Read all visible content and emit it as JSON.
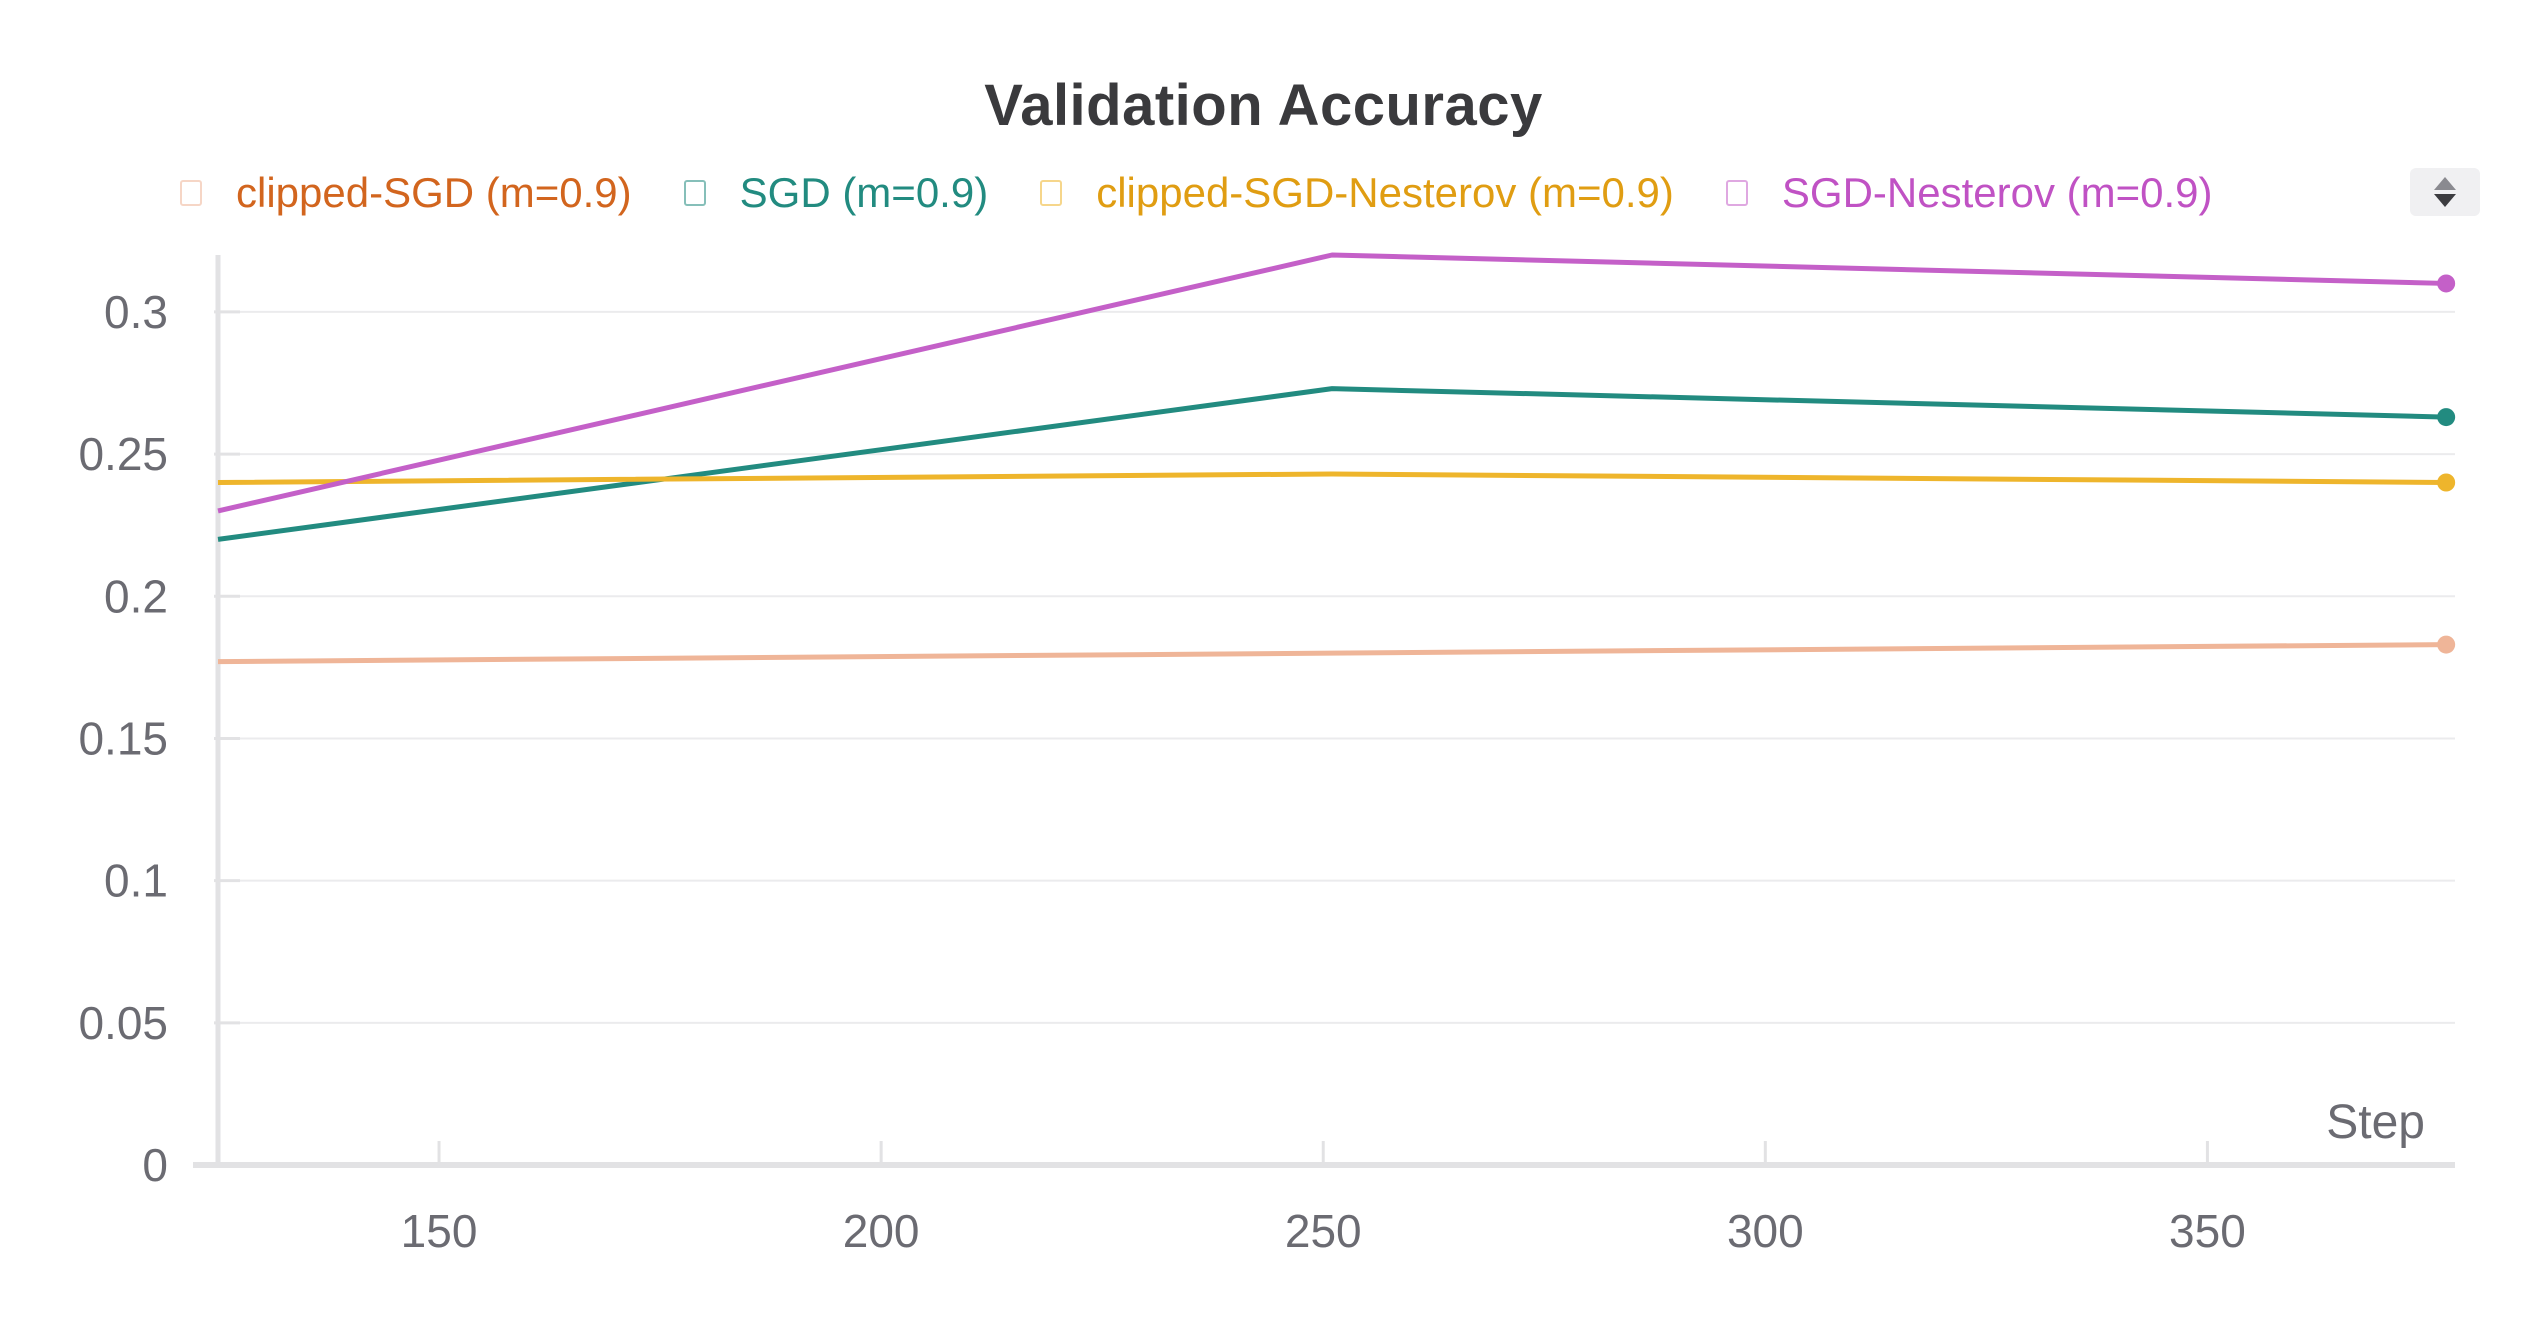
{
  "chart_data": {
    "type": "line",
    "title": "Validation Accuracy",
    "xlabel": "Step",
    "ylabel": "",
    "xlim": [
      125,
      378
    ],
    "ylim": [
      0,
      0.32
    ],
    "xticks": [
      150,
      200,
      250,
      300,
      350
    ],
    "yticks": [
      0,
      0.05,
      0.1,
      0.15,
      0.2,
      0.25,
      0.3
    ],
    "ytick_labels": [
      "0",
      "0.05",
      "0.1",
      "0.15",
      "0.2",
      "0.25",
      "0.3"
    ],
    "grid": true,
    "legend_position": "top",
    "x": [
      125,
      251,
      377
    ],
    "series": [
      {
        "name": "clipped-SGD (m=0.9)",
        "color": "#efb598",
        "legend_color": "#d2651e",
        "values": [
          0.177,
          0.18,
          0.183
        ]
      },
      {
        "name": "SGD (m=0.9)",
        "color": "#228b80",
        "legend_color": "#228b80",
        "values": [
          0.22,
          0.273,
          0.263
        ]
      },
      {
        "name": "clipped-SGD-Nesterov (m=0.9)",
        "color": "#eeb52c",
        "legend_color": "#e09d12",
        "values": [
          0.24,
          0.243,
          0.24
        ]
      },
      {
        "name": "SGD-Nesterov (m=0.9)",
        "color": "#c460c8",
        "legend_color": "#c052c4",
        "values": [
          0.23,
          0.32,
          0.31
        ]
      }
    ]
  }
}
